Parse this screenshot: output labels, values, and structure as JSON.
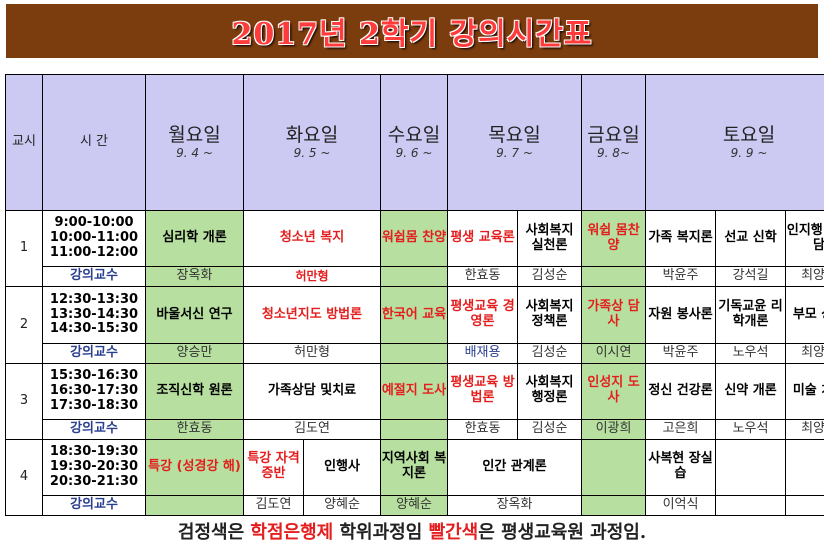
{
  "title": "2017년 2학기 강의시간표",
  "header": {
    "period": "교시",
    "time": "시 간",
    "days": [
      {
        "name": "월요일",
        "date": "9. 4 ~"
      },
      {
        "name": "화요일",
        "date": "9. 5 ~"
      },
      {
        "name": "수요일",
        "date": "9. 6 ~"
      },
      {
        "name": "목요일",
        "date": "9. 7 ~"
      },
      {
        "name": "금요일",
        "date": "9. 8~"
      },
      {
        "name": "토요일",
        "date": "9. 9 ~"
      }
    ]
  },
  "rows": [
    {
      "period": "1",
      "times": [
        "9:00-10:00",
        "10:00-11:00",
        "11:00-12:00"
      ],
      "mon": "심리학 개론",
      "tue": "청소년 복지",
      "wed": "워쉽몸 찬양",
      "thu_a": "평생 교육론",
      "thu_b": "사회복지 실천론",
      "fri": "워쉽 몸찬양",
      "sat_a": "가족 복지론",
      "sat_b": "선교 신학",
      "sat_c": "인지행 동상담"
    },
    {
      "period": "2",
      "times": [
        "12:30-13:30",
        "13:30-14:30",
        "14:30-15:30"
      ],
      "mon": "바울서신 연구",
      "tue": "청소년지도 방법론",
      "wed": "한국어 교육",
      "thu_a": "평생교육 경영론",
      "thu_b": "사회복지 정책론",
      "fri": "가족상 담사",
      "sat_a": "자원 봉사론",
      "sat_b": "기독교윤 리학개론",
      "sat_c": "부모 상담"
    },
    {
      "period": "3",
      "times": [
        "15:30-16:30",
        "16:30-17:30",
        "17:30-18:30"
      ],
      "mon": "조직신학 원론",
      "tue": "가족상담 및치료",
      "wed": "예절지 도사",
      "thu_a": "평생교육 방법론",
      "thu_b": "사회복지 행정론",
      "fri": "인성지 도사",
      "sat_a": "정신 건강론",
      "sat_b": "신약 개론",
      "sat_c": "미술 치료"
    },
    {
      "period": "4",
      "times": [
        "18:30-19:30",
        "19:30-20:30",
        "20:30-21:30"
      ],
      "mon": "특강 (성경강 해)",
      "tue_a": "특강 자격증반",
      "tue_b": "인행사",
      "wed": "지역사회 복지론",
      "thu": "인간 관계론",
      "fri": "",
      "sat_a": "사복현 장실습",
      "sat_b": "",
      "sat_c": ""
    }
  ],
  "professor_label": "강의교수",
  "professors": [
    {
      "mon": "장옥화",
      "tue": "허만형",
      "wed": "",
      "thu_a": "한효동",
      "thu_b": "김성순",
      "fri": "",
      "sat_a": "박윤주",
      "sat_b": "강석길",
      "sat_c": "최양진"
    },
    {
      "mon": "양승만",
      "tue": "허만형",
      "wed": "",
      "thu_a": "배재용",
      "thu_b": "김성순",
      "fri": "이시연",
      "sat_a": "박윤주",
      "sat_b": "노우석",
      "sat_c": "최양진"
    },
    {
      "mon": "한효동",
      "tue": "김도연",
      "wed": "",
      "thu_a": "한효동",
      "thu_b": "김성순",
      "fri": "이광희",
      "sat_a": "고은희",
      "sat_b": "노우석",
      "sat_c": "최양진"
    },
    {
      "mon": "",
      "tue_a": "김도연",
      "tue_b": "양혜순",
      "wed": "양혜순",
      "thu": "장옥화",
      "fri": "",
      "sat_a": "이억식",
      "sat_b": "",
      "sat_c": ""
    }
  ],
  "footer": {
    "part1": "검정색은 ",
    "part2": "학점은행제",
    "part3": " 학위과정임 ",
    "part4": "빨간색",
    "part5": "은 평생교육원 과정임."
  },
  "colors": {
    "title_bg": "#7b3c0e",
    "title_text": "#ff3b3b",
    "header_bg": "#cccaf2",
    "highlight_green": "#b7e0a0",
    "red_text": "#e41e1e",
    "professor_label": "#2a3f8f"
  }
}
